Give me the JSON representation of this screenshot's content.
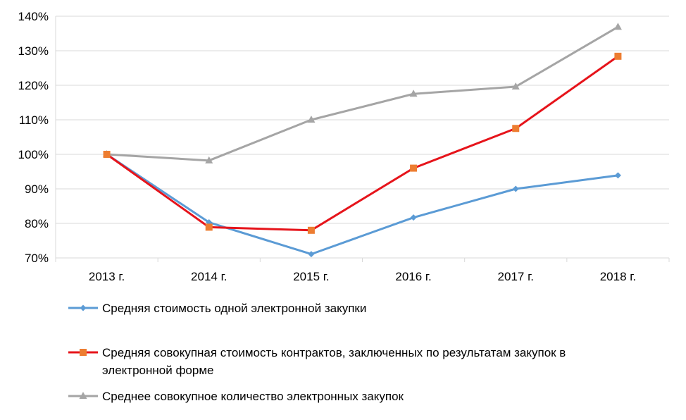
{
  "chart_data": {
    "type": "line",
    "title": "",
    "xlabel": "",
    "ylabel": "",
    "categories": [
      "2013 г.",
      "2014 г.",
      "2015 г.",
      "2016 г.",
      "2017 г.",
      "2018 г."
    ],
    "ylim": [
      70,
      140
    ],
    "yticks": [
      70,
      80,
      90,
      100,
      110,
      120,
      130,
      140
    ],
    "ytick_labels": [
      "70%",
      "80%",
      "90%",
      "100%",
      "110%",
      "120%",
      "130%",
      "140%"
    ],
    "grid": true,
    "legend_position": "bottom",
    "series": [
      {
        "name": "Средняя стоимость одной электронной закупки",
        "values": [
          100,
          80.3,
          71.1,
          81.7,
          90,
          93.9
        ],
        "color": "#5B9BD5",
        "marker": "diamond"
      },
      {
        "name": "Средняя совокупная стоимость контрактов, заключенных по результатам закупок в электронной форме",
        "values": [
          100,
          78.9,
          78,
          96,
          107.5,
          128.4
        ],
        "color": "#E6141B",
        "marker_color": "#ED7D31",
        "marker": "square"
      },
      {
        "name": "Среднее совокупное количество электронных закупок",
        "values": [
          100,
          98.2,
          110,
          117.5,
          119.6,
          136.9
        ],
        "color": "#A5A5A5",
        "marker": "triangle"
      }
    ]
  }
}
